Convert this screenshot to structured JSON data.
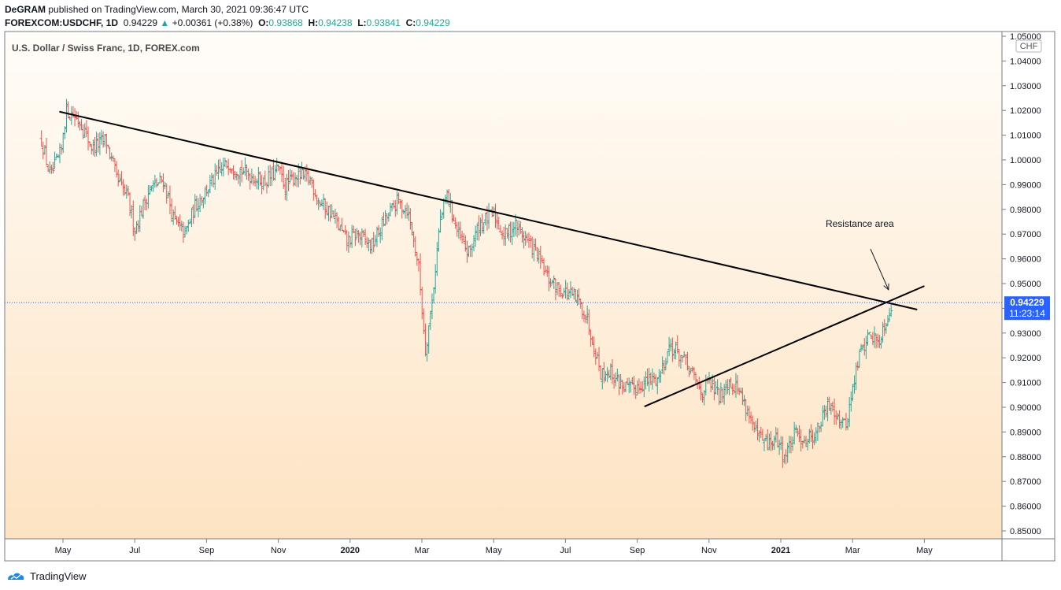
{
  "header": {
    "author": "DeGRAM",
    "published_text": "published on TradingView.com, March 30, 2021 09:36:47 UTC",
    "symbol": "FOREXCOM:USDCHF, 1D",
    "last": "0.94229",
    "change": "+0.00361 (+0.38%)",
    "o_label": "O:",
    "o_value": "0.93868",
    "h_label": "H:",
    "h_value": "0.94238",
    "l_label": "L:",
    "l_value": "0.93841",
    "c_label": "C:",
    "c_value": "0.94229"
  },
  "footer": {
    "brand": "TradingView"
  },
  "colors": {
    "up": "#26a69a",
    "down": "#ef5350",
    "bg_top": "#fffdf9",
    "bg_bottom": "#fde3c2",
    "price_tag": "#2962ff"
  },
  "chart_data": {
    "type": "ohlc",
    "title": "U.S. Dollar / Swiss Franc, 1D, FOREX.com",
    "currency": "CHF",
    "last_price": "0.94229",
    "countdown": "11:23:14",
    "ylim": [
      0.845,
      1.055
    ],
    "y_ticks": [
      "0.85000",
      "0.86000",
      "0.87000",
      "0.88000",
      "0.89000",
      "0.90000",
      "0.91000",
      "0.92000",
      "0.93000",
      "0.94000",
      "0.95000",
      "0.96000",
      "0.97000",
      "0.98000",
      "0.99000",
      "1.00000",
      "1.01000",
      "1.02000",
      "1.03000",
      "1.04000",
      "1.05000"
    ],
    "x_range_months": [
      -0.6,
      24.6
    ],
    "x_ticks": [
      {
        "label": "May",
        "m": 0
      },
      {
        "label": "Jul",
        "m": 2
      },
      {
        "label": "Sep",
        "m": 4
      },
      {
        "label": "Nov",
        "m": 6
      },
      {
        "label": "2020",
        "m": 8
      },
      {
        "label": "Mar",
        "m": 10
      },
      {
        "label": "May",
        "m": 12
      },
      {
        "label": "Jul",
        "m": 14
      },
      {
        "label": "Sep",
        "m": 16
      },
      {
        "label": "Nov",
        "m": 18
      },
      {
        "label": "2021",
        "m": 20
      },
      {
        "label": "Mar",
        "m": 22
      },
      {
        "label": "May",
        "m": 24
      }
    ],
    "price_path": [
      [
        -0.6,
        1.008
      ],
      [
        -0.35,
        0.993
      ],
      [
        0.0,
        1.005
      ],
      [
        -0.15,
        0.998
      ],
      [
        0.1,
        1.02
      ],
      [
        0.3,
        1.018
      ],
      [
        0.5,
        1.015
      ],
      [
        0.8,
        1.005
      ],
      [
        1.2,
        1.008
      ],
      [
        1.5,
        0.992
      ],
      [
        1.8,
        0.985
      ],
      [
        2.0,
        0.972
      ],
      [
        2.4,
        0.988
      ],
      [
        2.8,
        0.992
      ],
      [
        3.1,
        0.975
      ],
      [
        3.4,
        0.97
      ],
      [
        3.7,
        0.982
      ],
      [
        4.2,
        0.992
      ],
      [
        4.6,
        0.999
      ],
      [
        4.9,
        0.996
      ],
      [
        5.2,
        0.994
      ],
      [
        5.6,
        0.991
      ],
      [
        6.0,
        0.996
      ],
      [
        6.2,
        0.989
      ],
      [
        6.5,
        0.994
      ],
      [
        6.9,
        0.992
      ],
      [
        7.1,
        0.984
      ],
      [
        7.5,
        0.978
      ],
      [
        7.9,
        0.967
      ],
      [
        8.2,
        0.97
      ],
      [
        8.6,
        0.965
      ],
      [
        8.9,
        0.974
      ],
      [
        9.3,
        0.983
      ],
      [
        9.6,
        0.98
      ],
      [
        9.9,
        0.958
      ],
      [
        10.1,
        0.923
      ],
      [
        10.3,
        0.945
      ],
      [
        10.5,
        0.975
      ],
      [
        10.7,
        0.986
      ],
      [
        11.0,
        0.97
      ],
      [
        11.3,
        0.962
      ],
      [
        11.6,
        0.974
      ],
      [
        12.0,
        0.978
      ],
      [
        12.3,
        0.969
      ],
      [
        12.6,
        0.974
      ],
      [
        12.9,
        0.968
      ],
      [
        13.2,
        0.962
      ],
      [
        13.5,
        0.952
      ],
      [
        13.8,
        0.948
      ],
      [
        14.1,
        0.946
      ],
      [
        14.4,
        0.942
      ],
      [
        14.6,
        0.936
      ],
      [
        14.8,
        0.925
      ],
      [
        15.0,
        0.913
      ],
      [
        15.2,
        0.915
      ],
      [
        15.5,
        0.91
      ],
      [
        15.8,
        0.907
      ],
      [
        16.2,
        0.91
      ],
      [
        16.6,
        0.912
      ],
      [
        16.9,
        0.925
      ],
      [
        17.2,
        0.921
      ],
      [
        17.5,
        0.914
      ],
      [
        17.8,
        0.906
      ],
      [
        18.0,
        0.91
      ],
      [
        18.3,
        0.904
      ],
      [
        18.5,
        0.911
      ],
      [
        18.8,
        0.908
      ],
      [
        19.1,
        0.898
      ],
      [
        19.3,
        0.889
      ],
      [
        19.6,
        0.885
      ],
      [
        19.9,
        0.887
      ],
      [
        20.1,
        0.88
      ],
      [
        20.4,
        0.889
      ],
      [
        20.7,
        0.887
      ],
      [
        21.0,
        0.89
      ],
      [
        21.2,
        0.897
      ],
      [
        21.4,
        0.902
      ],
      [
        21.6,
        0.896
      ],
      [
        21.8,
        0.892
      ],
      [
        22.0,
        0.907
      ],
      [
        22.2,
        0.922
      ],
      [
        22.5,
        0.93
      ],
      [
        22.7,
        0.926
      ],
      [
        22.9,
        0.934
      ],
      [
        23.05,
        0.94
      ],
      [
        23.1,
        0.9423
      ]
    ],
    "trendlines": [
      {
        "name": "descending-resistance",
        "from": [
          -0.1,
          1.0195
        ],
        "to": [
          23.8,
          0.9395
        ]
      },
      {
        "name": "ascending-support",
        "from": [
          16.2,
          0.9003
        ],
        "to": [
          24.0,
          0.949
        ]
      }
    ],
    "annotation": {
      "text": "Resistance area",
      "text_at": [
        22.2,
        0.973
      ],
      "arrow_from": [
        22.5,
        0.964
      ],
      "arrow_to": [
        23.0,
        0.9475
      ]
    }
  }
}
